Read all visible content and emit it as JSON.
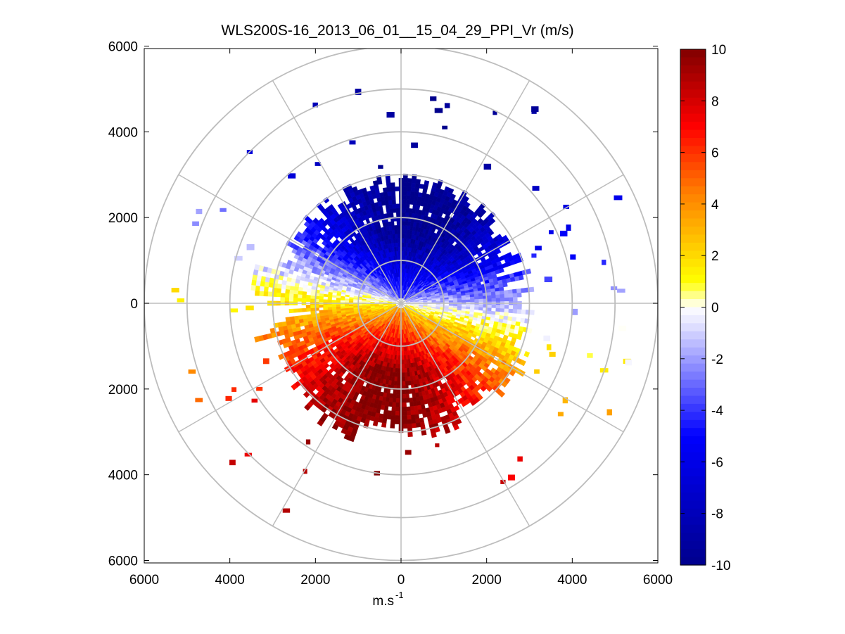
{
  "chart_data": {
    "type": "heatmap",
    "subtype": "polar-ppi",
    "title": "WLS200S-16_2013_06_01__15_04_29_PPI_Vr (m/s)",
    "xlabel_base": "m.s",
    "xlabel_exp": "-1",
    "ylabel": "",
    "xlim": [
      -6000,
      6000
    ],
    "ylim": [
      -6000,
      6000
    ],
    "x_ticks": [
      -6000,
      -4000,
      -2000,
      0,
      2000,
      4000,
      6000
    ],
    "x_tick_labels": [
      "6000",
      "4000",
      "2000",
      "0",
      "2000",
      "4000",
      "6000"
    ],
    "y_ticks": [
      6000,
      4000,
      2000,
      0,
      -2000,
      -4000,
      -6000
    ],
    "y_tick_labels": [
      "6000",
      "4000",
      "2000",
      "0",
      "2000",
      "4000",
      "6000"
    ],
    "polar_grid": {
      "ring_radii": [
        1000,
        2000,
        3000,
        4000,
        5000,
        6000
      ],
      "spoke_angles_deg": [
        0,
        30,
        60,
        90,
        120,
        150,
        180,
        210,
        240,
        270,
        300,
        330
      ]
    },
    "colorbar": {
      "label": "Vr (m/s)",
      "range": [
        -10,
        10
      ],
      "ticks": [
        10,
        8,
        6,
        4,
        2,
        0,
        -2,
        -4,
        -6,
        -8,
        -10
      ],
      "tick_labels": [
        "10",
        "8",
        "6",
        "4",
        "2",
        "0",
        "-2",
        "-4",
        "-6",
        "-8",
        "-10"
      ],
      "colormap": [
        "#00008c",
        "#0000ff",
        "#e6e6ff",
        "#ffffff",
        "#ffff00",
        "#ff8000",
        "#ff0000",
        "#800000"
      ]
    },
    "velocity_field": {
      "range_gate_m": 100,
      "azimuth_step_deg": 2,
      "zero_line_azimuth_deg": [
        100,
        280
      ],
      "approaching_sector": "north (negative Vr)",
      "receding_sector": "south (positive Vr)",
      "max_abs_vr": 10
    }
  }
}
